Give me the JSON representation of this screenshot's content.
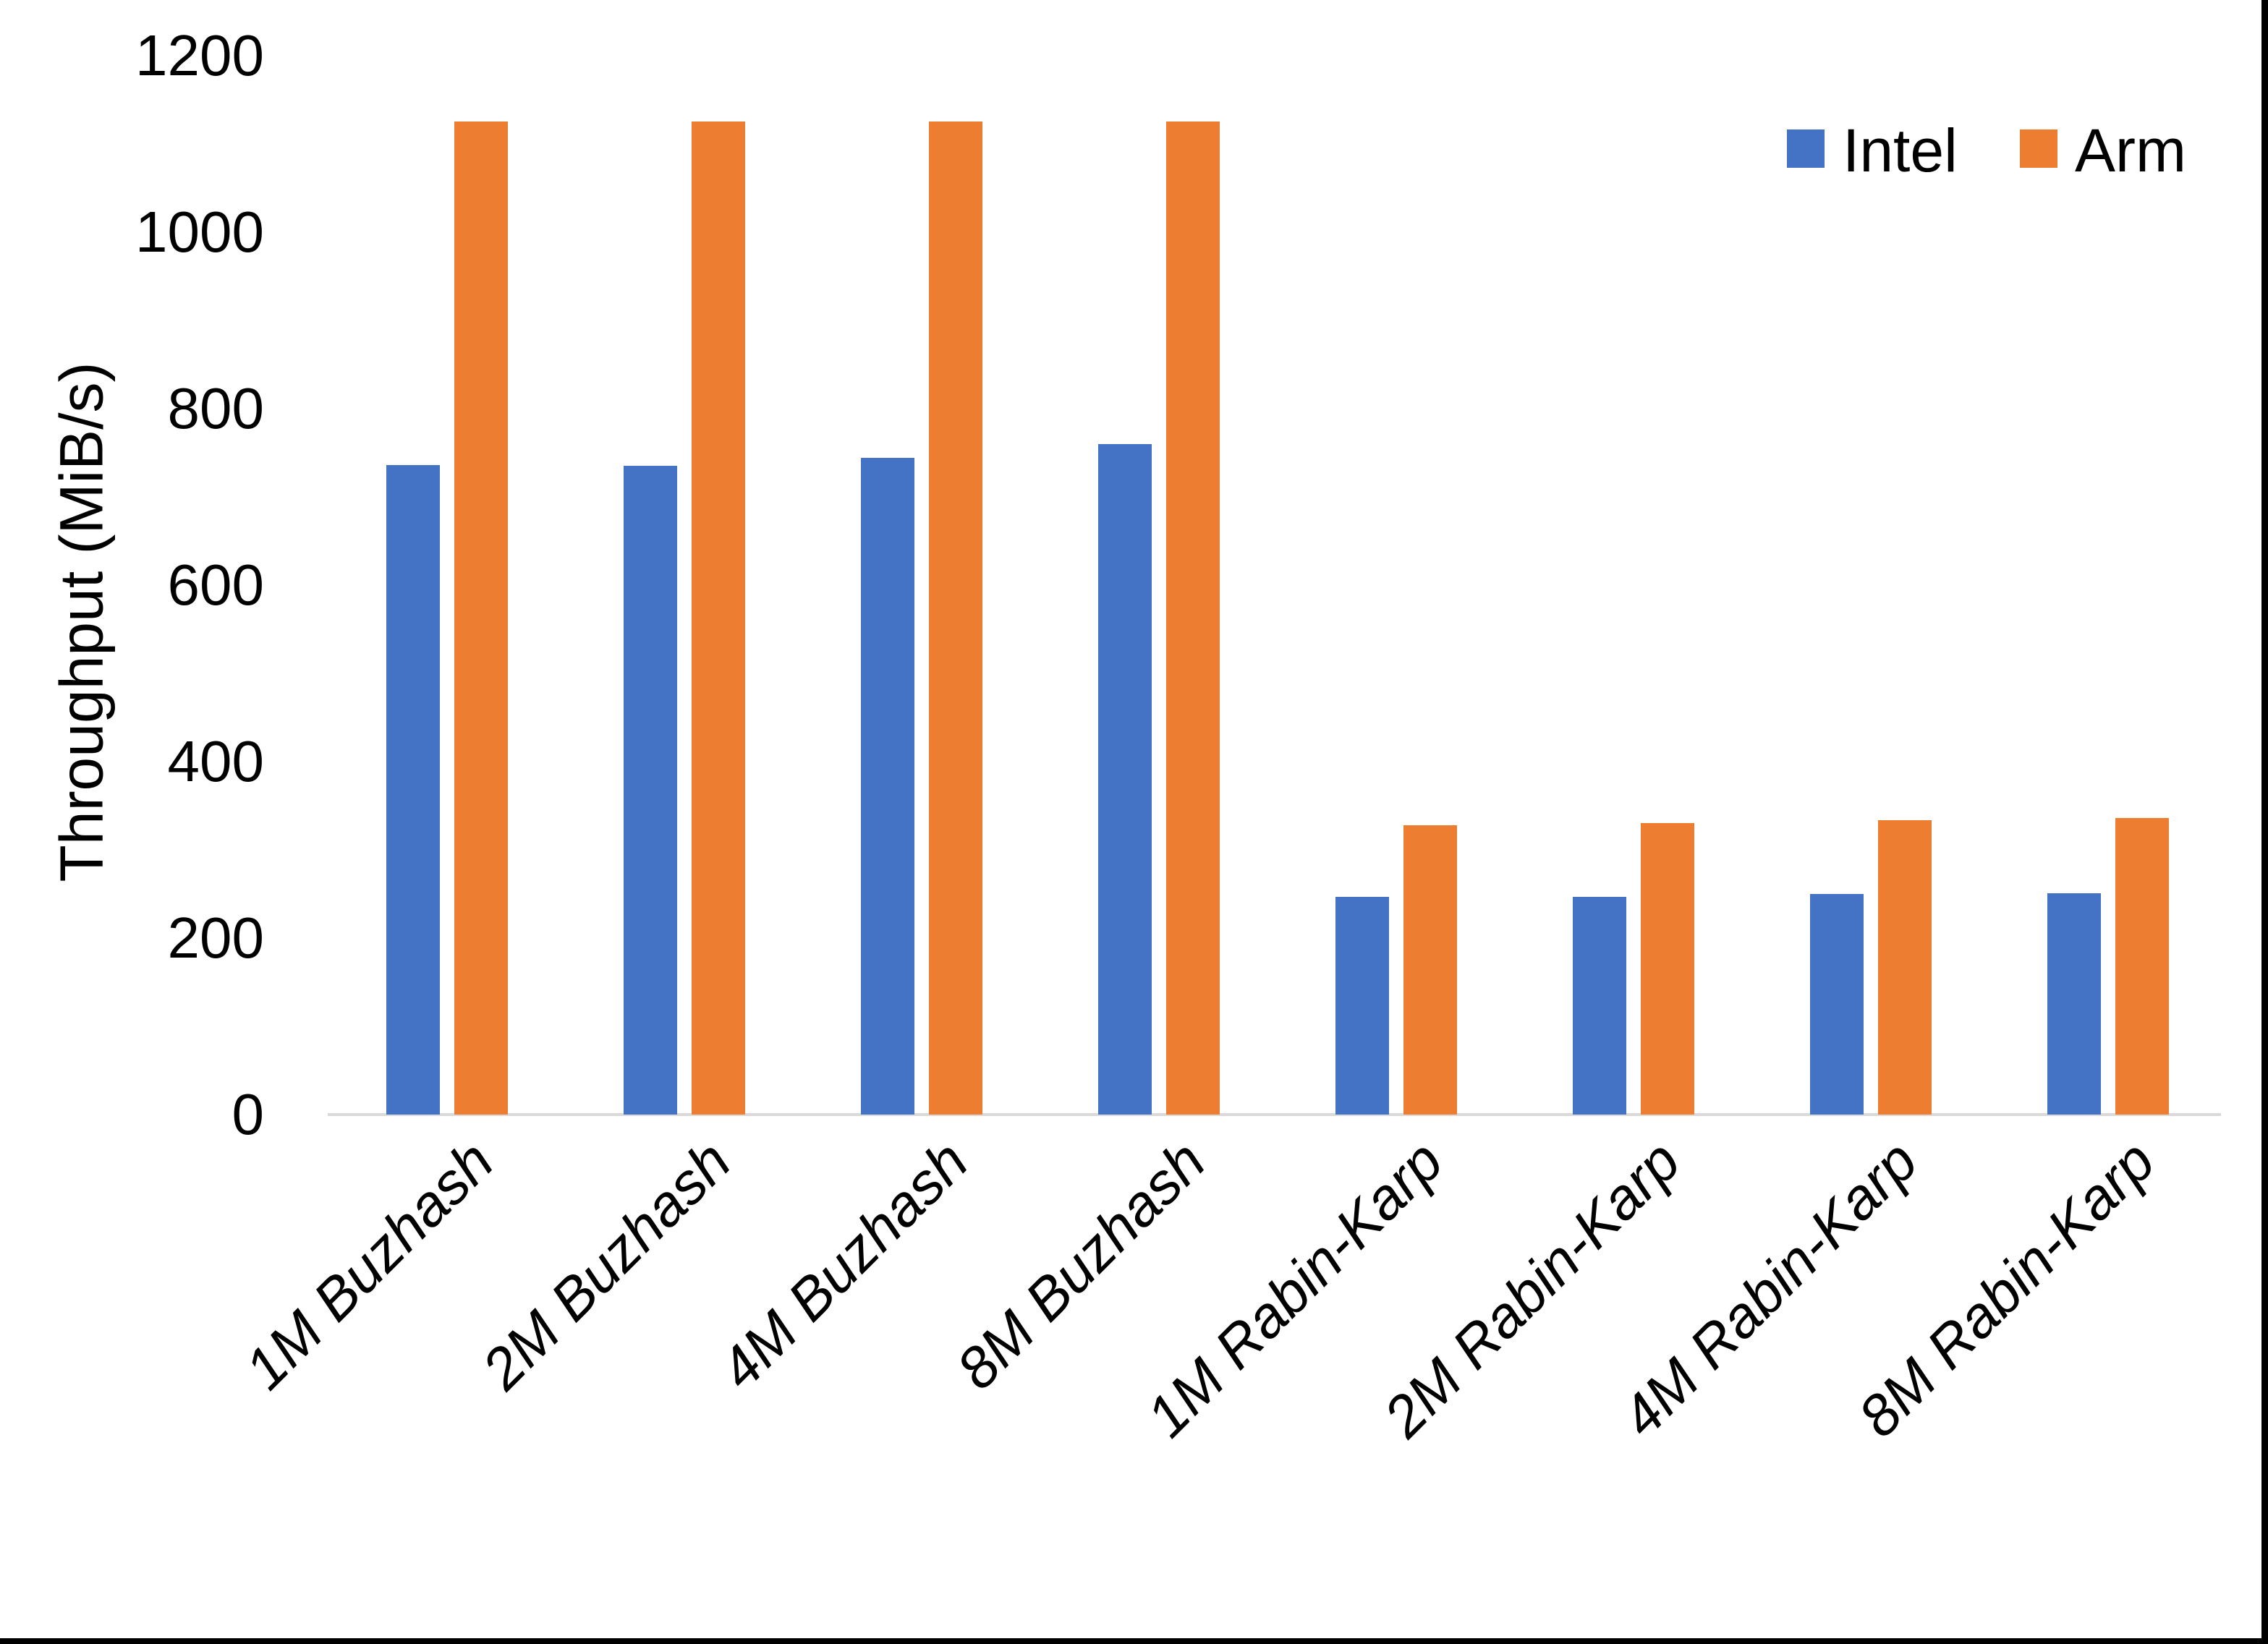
{
  "chart_data": {
    "type": "bar",
    "title": "",
    "xlabel": "",
    "ylabel": "Throughput (MiB/s)",
    "ylim": [
      0,
      1200
    ],
    "ytick_interval": 200,
    "ytick_labels": [
      "0",
      "200",
      "400",
      "600",
      "800",
      "1000",
      "1200"
    ],
    "grid": false,
    "legend_position": "top-right",
    "axis_line_color": "#d9d9d9",
    "text_color": "#000000",
    "categories": [
      "1M Buzhash",
      "2M Buzhash",
      "4M Buzhash",
      "8M Buzhash",
      "1M Rabin-Karp",
      "2M Rabin-Karp",
      "4M Rabin-Karp",
      "8M Rabin-Karp"
    ],
    "series": [
      {
        "name": "Intel",
        "color": "#4472c4",
        "values": [
          736,
          735,
          744,
          760,
          247,
          247,
          250,
          251
        ]
      },
      {
        "name": "Arm",
        "color": "#ed7d31",
        "values": [
          1125,
          1125,
          1125,
          1125,
          328,
          330,
          334,
          336
        ]
      }
    ]
  }
}
